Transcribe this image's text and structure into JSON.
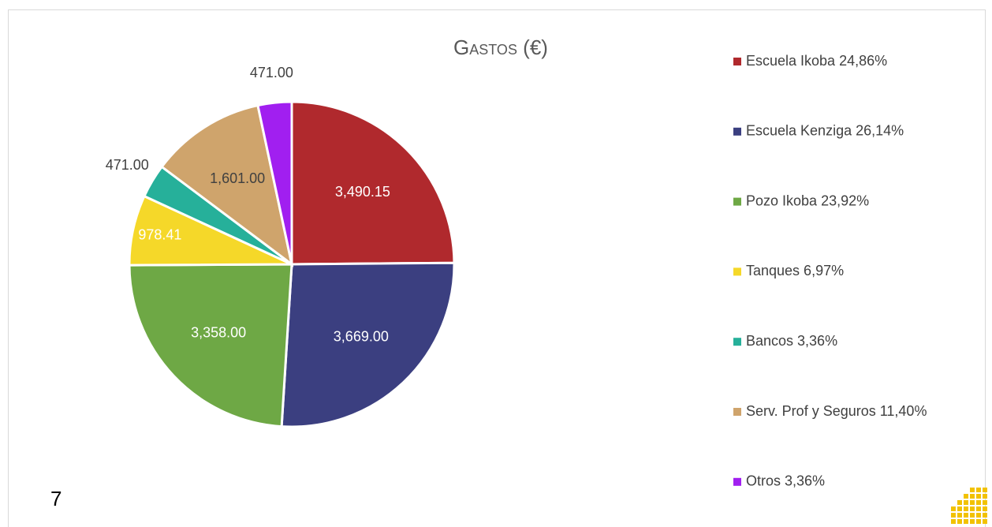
{
  "chart_data": {
    "type": "pie",
    "title": "Gastos (€)",
    "categories": [
      "Escuela Ikoba 24,86%",
      "Escuela Kenziga 26,14%",
      "Pozo Ikoba 23,92%",
      "Tanques 6,97%",
      "Bancos 3,36%",
      "Serv. Prof y Seguros 11,40%",
      "Otros 3,36%"
    ],
    "values": [
      3490.15,
      3669,
      3358,
      978.41,
      471,
      1601,
      471
    ],
    "value_labels": [
      "3,490.15",
      "3,669.00",
      "3,358.00",
      "978.41",
      "471.00",
      "1,601.00",
      "471.00"
    ],
    "colors": [
      "#b0292d",
      "#3b3f80",
      "#6ea845",
      "#f5d829",
      "#26b09a",
      "#cfa46c",
      "#a11ff0"
    ],
    "legend": "right"
  },
  "page_number": "7"
}
